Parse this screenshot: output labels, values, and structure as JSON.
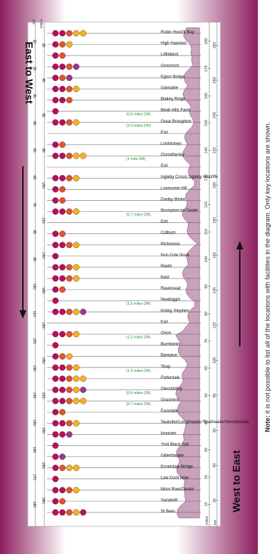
{
  "titles": {
    "east_to_west": "East to West",
    "west_to_east": "West to East"
  },
  "note": {
    "label": "Note:",
    "text": "it is not possible to list all of the locations with facilities in the diagram. Only key locations are shown."
  },
  "units": {
    "miles": "miles",
    "km": "km"
  },
  "miles_scale_left": [
    "180",
    "170",
    "160",
    "150",
    "140",
    "130",
    "120",
    "110",
    "100",
    "90",
    "80",
    "70",
    "60",
    "50",
    "40",
    "30",
    "20",
    "10"
  ],
  "km_scale_left": [
    "280",
    "260",
    "240",
    "220",
    "200",
    "180",
    "160",
    "140",
    "120",
    "100",
    "80",
    "60",
    "40",
    "20"
  ],
  "miles_scale_right": [
    "10",
    "20",
    "30",
    "40",
    "50",
    "60",
    "70",
    "80",
    "90",
    "100",
    "110",
    "120",
    "130",
    "140",
    "150",
    "160",
    "170",
    "180"
  ],
  "km_scale_right": [
    "20",
    "40",
    "60",
    "80",
    "100",
    "120",
    "140",
    "160",
    "180",
    "200",
    "220",
    "240",
    "260",
    "280"
  ],
  "colors": {
    "accent": "#8c1d5e",
    "green": "#1a8a2e"
  },
  "locations": [
    {
      "name": "St Bees",
      "icons": [
        "red",
        "red",
        "orange",
        "yellow",
        "red"
      ]
    },
    {
      "name": "Sandwith",
      "icons": [
        "red",
        "orange"
      ]
    },
    {
      "name": "Moor Row/Cleator",
      "icons": [
        "red",
        "red",
        "orange",
        "yellow"
      ]
    },
    {
      "name": "Low Cock How",
      "icons": [
        "red"
      ]
    },
    {
      "name": "Ennerdale Bridge",
      "icons": [
        "red",
        "orange",
        "yellow",
        "yellow"
      ]
    },
    {
      "name": "Gillerthwaite",
      "icons": [
        "red",
        "purple"
      ]
    },
    {
      "name": "YHA Black Sail",
      "icons": [
        "red"
      ]
    },
    {
      "name": "Honister",
      "icons": [
        "red",
        "red",
        "purple"
      ]
    },
    {
      "name": "Seatoller/Longthwaite/ Rosthwaite/Stonethwaite",
      "icons": [
        "red",
        "red",
        "orange",
        "yellow"
      ]
    },
    {
      "name": "Easedale",
      "icons": [
        "red",
        "orange"
      ]
    },
    {
      "name": "Grasmere",
      "icons": [
        "red",
        "red",
        "orange",
        "yellow",
        "yellow"
      ],
      "detour": "(0.7 miles OR)"
    },
    {
      "name": "Glenridding",
      "icons": [
        "red",
        "red",
        "orange",
        "yellow",
        "purple"
      ],
      "detour": "(0.5 miles OR)"
    },
    {
      "name": "Patterdale",
      "icons": [
        "red",
        "red",
        "orange",
        "yellow",
        "yellow"
      ]
    },
    {
      "name": "Shap",
      "icons": [
        "red",
        "red",
        "orange",
        "yellow"
      ],
      "detour": "(1.5 miles OR)"
    },
    {
      "name": "Bampton",
      "icons": [
        "red",
        "orange",
        "yellow"
      ]
    },
    {
      "name": "Burnbanks",
      "icons": [
        "red"
      ]
    },
    {
      "name": "Orton",
      "icons": [
        "red",
        "red",
        "orange",
        "yellow"
      ],
      "detour": "(1.5 miles OR)"
    },
    {
      "name": "Exit",
      "icons": []
    },
    {
      "name": "Kirkby Stephen",
      "icons": [
        "red",
        "red",
        "orange",
        "yellow",
        "purple"
      ]
    },
    {
      "name": "Newbiggin",
      "icons": [
        "red"
      ],
      "detour": "(1.5 miles OR)"
    },
    {
      "name": "Ravenseat",
      "icons": [
        "red",
        "orange"
      ]
    },
    {
      "name": "Keld",
      "icons": [
        "red",
        "red",
        "orange",
        "yellow"
      ]
    },
    {
      "name": "Reeth",
      "icons": [
        "red",
        "red",
        "orange",
        "yellow"
      ]
    },
    {
      "name": "Nun Cote Nook",
      "icons": [
        "red"
      ]
    },
    {
      "name": "Richmond",
      "icons": [
        "red",
        "red",
        "orange",
        "yellow"
      ]
    },
    {
      "name": "Colburn",
      "icons": [
        "red",
        "orange"
      ]
    },
    {
      "name": "Exit",
      "icons": []
    },
    {
      "name": "Brompton-on-Swale",
      "icons": [
        "red",
        "red",
        "orange",
        "yellow"
      ],
      "detour": "(0.7 miles OR)"
    },
    {
      "name": "Danby Wiske",
      "icons": [
        "red",
        "orange"
      ]
    },
    {
      "name": "Lovesome Hill",
      "icons": [
        "red",
        "orange"
      ]
    },
    {
      "name": "Ingleby Cross/ Ingleby Arncliffe",
      "icons": [
        "red",
        "red",
        "orange",
        "yellow"
      ]
    },
    {
      "name": "Exit",
      "icons": []
    },
    {
      "name": "Osmotherley",
      "icons": [
        "red",
        "red",
        "orange",
        "yellow",
        "yellow"
      ],
      "detour": "(1 mile OR)"
    },
    {
      "name": "Lordstones",
      "icons": [
        "red",
        "orange"
      ]
    },
    {
      "name": "Exit",
      "icons": []
    },
    {
      "name": "Great Broughton",
      "icons": [
        "red",
        "red",
        "orange",
        "yellow"
      ],
      "detour": "(2-3 miles OR)"
    },
    {
      "name": "Beak Hills Farm",
      "icons": [
        "red"
      ],
      "detour": "(0.5 miles OR)"
    },
    {
      "name": "Blakey Ridge",
      "icons": [
        "red",
        "red",
        "orange"
      ]
    },
    {
      "name": "Glaisdale",
      "icons": [
        "red",
        "red",
        "orange",
        "yellow"
      ]
    },
    {
      "name": "Egton Bridge",
      "icons": [
        "red",
        "orange",
        "purple"
      ]
    },
    {
      "name": "Grosmont",
      "icons": [
        "red",
        "red",
        "orange",
        "purple"
      ]
    },
    {
      "name": "Littlebeck",
      "icons": [
        "red",
        "orange"
      ]
    },
    {
      "name": "High Hawsker",
      "icons": [
        "red",
        "orange",
        "yellow"
      ]
    },
    {
      "name": "Robin Hood's Bay",
      "icons": [
        "red",
        "red",
        "orange",
        "yellow",
        "yellow"
      ]
    }
  ]
}
